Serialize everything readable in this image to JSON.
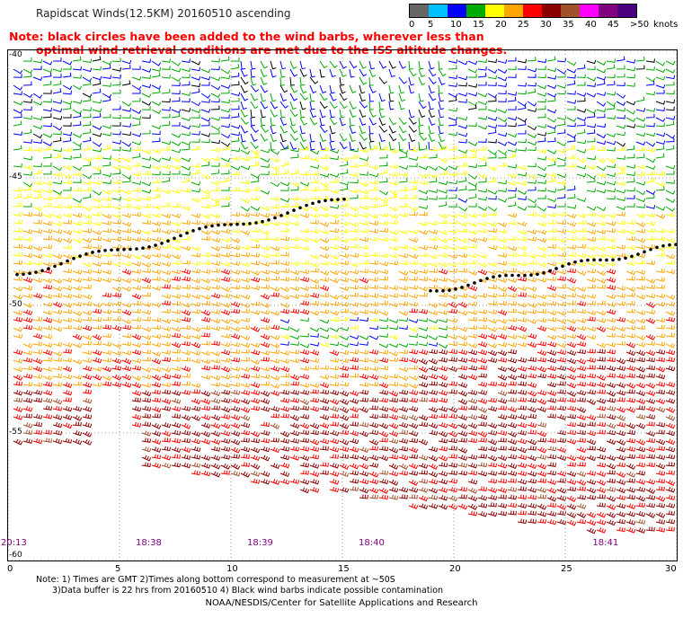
{
  "title": "Rapidscat Winds(12.5KM) 20160510 ascending",
  "note": {
    "line1": "Note: black circles have been added to the wind barbs, wherever less than",
    "line2": "optimal wind retrieval conditions are met due to the ISS altitude changes."
  },
  "legend": {
    "colors": [
      "#666666",
      "#00bfff",
      "#0000ff",
      "#00aa00",
      "#ffff00",
      "#ffa500",
      "#ff0000",
      "#8b0000",
      "#a0522d",
      "#ff00ff",
      "#800080",
      "#4b0082"
    ],
    "tick_labels": [
      "0",
      "5",
      "10",
      "15",
      "20",
      "25",
      "30",
      "35",
      "40",
      "45",
      ">50"
    ],
    "unit": "knots"
  },
  "map": {
    "lat_labels": [
      "-40",
      "-45",
      "-50",
      "-55",
      "-60"
    ],
    "lon_labels": [
      "0",
      "5",
      "10",
      "15",
      "20",
      "25",
      "30"
    ],
    "time_labels": [
      "20:13",
      "18:38",
      "18:39",
      "18:40",
      "18:41"
    ],
    "lon_range": [
      0,
      30
    ],
    "lat_range": [
      -60,
      -40
    ],
    "grid_color": "#999999"
  },
  "footnote": {
    "line1": "Note: 1) Times are GMT 2)Times along bottom correspond to measurement at ~50S",
    "line2": "3)Data buffer is 22 hrs from 20160510 4) Black wind barbs indicate possible contamination"
  },
  "credit": "NOAA/NESDIS/Center for Satellite Applications and Research"
}
